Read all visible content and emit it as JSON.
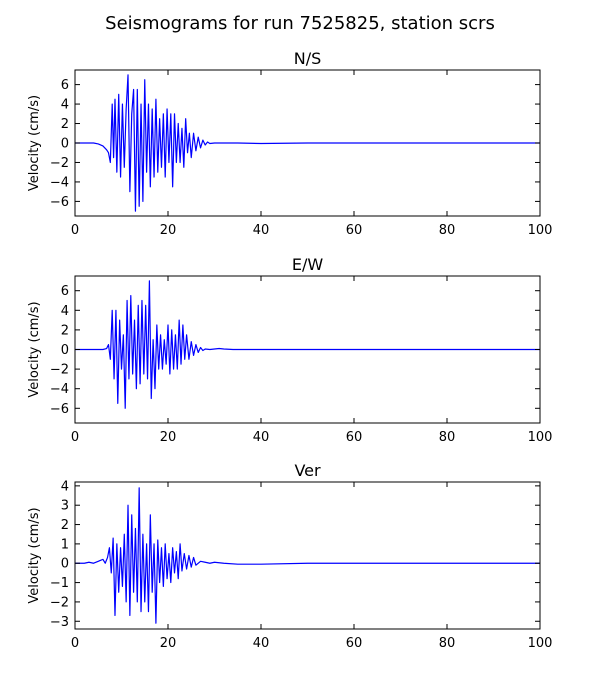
{
  "figure": {
    "title": "Seismograms for run 7525825, station scrs"
  },
  "chart_data": [
    {
      "type": "line",
      "title": "N/S",
      "xlabel": "",
      "ylabel": "Velocity (cm/s)",
      "xlim": [
        0,
        100
      ],
      "ylim": [
        -7.5,
        7.5
      ],
      "xticks": [
        0,
        20,
        40,
        60,
        80,
        100
      ],
      "yticks": [
        -6,
        -4,
        -2,
        0,
        2,
        4,
        6
      ],
      "grid": false,
      "line_color": "#0000ff",
      "series": [
        {
          "x": [
            0,
            2,
            4,
            5,
            6,
            6.8,
            7.2,
            7.6,
            8.0,
            8.3,
            8.6,
            9.0,
            9.4,
            9.8,
            10.2,
            10.6,
            11.0,
            11.4,
            11.8,
            12.2,
            12.6,
            13.0,
            13.4,
            13.8,
            14.2,
            14.6,
            15.0,
            15.4,
            15.8,
            16.2,
            16.6,
            17.0,
            17.4,
            17.8,
            18.2,
            18.6,
            19.0,
            19.4,
            19.8,
            20.2,
            20.6,
            21.0,
            21.4,
            21.8,
            22.2,
            22.6,
            23.0,
            23.4,
            23.8,
            24.2,
            24.6,
            25.0,
            25.5,
            26.0,
            26.5,
            27.0,
            27.5,
            28.0,
            28.5,
            29.0,
            30,
            32,
            35,
            40,
            50,
            60,
            70,
            80,
            90,
            100
          ],
          "y": [
            0,
            0,
            0,
            -0.1,
            -0.3,
            -0.7,
            -1.0,
            -2.0,
            4.0,
            -1.5,
            4.5,
            -3.0,
            5.0,
            -3.5,
            4.0,
            -2.5,
            3.5,
            7.0,
            -5.0,
            3.0,
            5.5,
            -7.0,
            5.5,
            -6.5,
            4.0,
            -6.0,
            6.5,
            -3.0,
            4.0,
            -4.5,
            3.5,
            -3.5,
            4.5,
            -3.0,
            2.5,
            -2.5,
            3.0,
            -3.5,
            3.5,
            -2.0,
            3.0,
            -4.5,
            3.0,
            -2.0,
            2.0,
            -2.0,
            1.5,
            -2.5,
            2.5,
            -1.0,
            1.0,
            -1.5,
            1.0,
            -0.8,
            0.6,
            -0.5,
            0.3,
            -0.2,
            0.1,
            -0.05,
            0,
            0,
            0,
            -0.05,
            0,
            0,
            0,
            0,
            0,
            0
          ]
        }
      ]
    },
    {
      "type": "line",
      "title": "E/W",
      "xlabel": "",
      "ylabel": "Velocity (cm/s)",
      "xlim": [
        0,
        100
      ],
      "ylim": [
        -7.5,
        7.5
      ],
      "xticks": [
        0,
        20,
        40,
        60,
        80,
        100
      ],
      "yticks": [
        -6,
        -4,
        -2,
        0,
        2,
        4,
        6
      ],
      "grid": false,
      "line_color": "#0000ff",
      "series": [
        {
          "x": [
            0,
            2,
            4,
            5,
            6,
            6.8,
            7.2,
            7.6,
            8.0,
            8.4,
            8.8,
            9.2,
            9.6,
            10.0,
            10.4,
            10.8,
            11.2,
            11.6,
            12.0,
            12.4,
            12.8,
            13.2,
            13.6,
            14.0,
            14.4,
            14.8,
            15.2,
            15.6,
            16.0,
            16.4,
            16.8,
            17.2,
            17.6,
            18.0,
            18.4,
            18.8,
            19.2,
            19.6,
            20.0,
            20.4,
            20.8,
            21.2,
            21.6,
            22.0,
            22.4,
            22.8,
            23.2,
            23.6,
            24.0,
            24.5,
            25.0,
            25.5,
            26.0,
            26.5,
            27.0,
            27.5,
            28.0,
            29.0,
            30,
            31,
            32,
            34,
            36,
            40,
            50,
            60,
            70,
            80,
            90,
            100
          ],
          "y": [
            0,
            0,
            0,
            0,
            0,
            0.1,
            0.5,
            -1.0,
            4.0,
            -3.0,
            4.0,
            -5.5,
            3.0,
            -2.0,
            1.5,
            -6.0,
            5.0,
            -3.0,
            5.5,
            -2.5,
            3.0,
            -4.0,
            4.5,
            -3.5,
            5.0,
            -2.5,
            4.5,
            -3.0,
            7.0,
            -5.0,
            1.0,
            -4.0,
            2.5,
            -2.0,
            1.5,
            -2.0,
            1.0,
            -1.5,
            2.5,
            -2.5,
            2.0,
            -2.0,
            1.5,
            -2.0,
            3.0,
            -1.5,
            2.5,
            -1.0,
            1.5,
            -1.0,
            0.8,
            -0.6,
            0.5,
            -0.3,
            0.2,
            -0.1,
            0.05,
            0,
            0.05,
            0.1,
            0.05,
            0,
            0,
            0,
            0,
            0,
            0,
            0,
            0,
            0
          ]
        }
      ]
    },
    {
      "type": "line",
      "title": "Ver",
      "xlabel": "",
      "ylabel": "Velocity (cm/s)",
      "xlim": [
        0,
        100
      ],
      "ylim": [
        -3.4,
        4.2
      ],
      "xticks": [
        0,
        20,
        40,
        60,
        80,
        100
      ],
      "yticks": [
        -3,
        -2,
        -1,
        0,
        1,
        2,
        3,
        4
      ],
      "grid": false,
      "line_color": "#0000ff",
      "series": [
        {
          "x": [
            0,
            2,
            3,
            4,
            5,
            5.5,
            6,
            6.5,
            7.0,
            7.4,
            7.8,
            8.2,
            8.6,
            9.0,
            9.4,
            9.8,
            10.2,
            10.6,
            11.0,
            11.4,
            11.8,
            12.2,
            12.6,
            13.0,
            13.4,
            13.8,
            14.2,
            14.6,
            15.0,
            15.4,
            15.8,
            16.2,
            16.6,
            17.0,
            17.4,
            17.8,
            18.2,
            18.6,
            19.0,
            19.4,
            19.8,
            20.2,
            20.6,
            21.0,
            21.4,
            21.8,
            22.2,
            22.6,
            23.0,
            23.5,
            24.0,
            24.5,
            25.0,
            25.5,
            26.0,
            27.0,
            28.0,
            29.0,
            30,
            32,
            35,
            40,
            50,
            60,
            70,
            80,
            90,
            100
          ],
          "y": [
            0,
            0,
            0.05,
            0,
            0.1,
            0.15,
            0.2,
            0,
            0.3,
            0.8,
            -0.5,
            1.3,
            -2.7,
            1.0,
            -1.5,
            0.8,
            -1.2,
            1.5,
            -2.0,
            3.0,
            -2.7,
            2.5,
            -1.5,
            1.8,
            -2.0,
            3.9,
            -2.5,
            1.5,
            -2.0,
            1.0,
            -2.5,
            2.5,
            -1.5,
            1.0,
            -3.1,
            1.2,
            -1.0,
            0.8,
            -1.2,
            1.0,
            -0.8,
            0.5,
            -1.0,
            0.8,
            -0.5,
            0.6,
            -0.8,
            1.0,
            -0.4,
            0.5,
            -0.3,
            0.4,
            -0.2,
            0.3,
            -0.1,
            0.1,
            0.05,
            0,
            0.05,
            0,
            -0.05,
            -0.05,
            0,
            0,
            0,
            0,
            0,
            0
          ]
        }
      ]
    }
  ]
}
